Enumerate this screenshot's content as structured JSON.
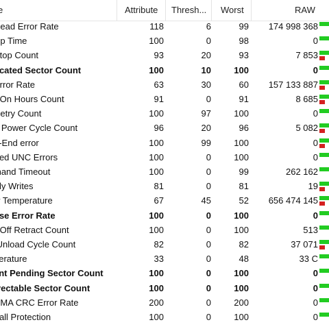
{
  "header": {
    "name": "e",
    "attribute": "Attribute",
    "threshold": "Thresh...",
    "worst": "Worst",
    "raw": "RAW"
  },
  "colors": {
    "ok": "#22cc22",
    "bad": "#d42020"
  },
  "rows": [
    {
      "name": "Read Error Rate",
      "attr": "118",
      "thr": "6",
      "worst": "99",
      "raw": "174 998 368",
      "bold": false,
      "red": false
    },
    {
      "name": "Up Time",
      "attr": "100",
      "thr": "0",
      "worst": "98",
      "raw": "0",
      "bold": false,
      "red": false
    },
    {
      "name": "Stop Count",
      "attr": "93",
      "thr": "20",
      "worst": "93",
      "raw": "7 853",
      "bold": false,
      "red": true
    },
    {
      "name": "ocated Sector Count",
      "attr": "100",
      "thr": "10",
      "worst": "100",
      "raw": "0",
      "bold": true,
      "red": false
    },
    {
      "name": "Error Rate",
      "attr": "63",
      "thr": "30",
      "worst": "60",
      "raw": "157 133 887",
      "bold": false,
      "red": true
    },
    {
      "name": "r-On Hours Count",
      "attr": "91",
      "thr": "0",
      "worst": "91",
      "raw": "8 685",
      "bold": false,
      "red": true
    },
    {
      "name": "Retry Count",
      "attr": "100",
      "thr": "97",
      "worst": "100",
      "raw": "0",
      "bold": false,
      "red": false
    },
    {
      "name": "e Power Cycle Count",
      "attr": "96",
      "thr": "20",
      "worst": "96",
      "raw": "5 082",
      "bold": false,
      "red": true
    },
    {
      "name": "o-End error",
      "attr": "100",
      "thr": "99",
      "worst": "100",
      "raw": "0",
      "bold": false,
      "red": true
    },
    {
      "name": "rted UNC Errors",
      "attr": "100",
      "thr": "0",
      "worst": "100",
      "raw": "0",
      "bold": false,
      "red": false
    },
    {
      "name": "mand Timeout",
      "attr": "100",
      "thr": "0",
      "worst": "99",
      "raw": "262 162",
      "bold": false,
      "red": false
    },
    {
      "name": "Fly Writes",
      "attr": "81",
      "thr": "0",
      "worst": "81",
      "raw": "19",
      "bold": false,
      "red": true
    },
    {
      "name": "w Temperature",
      "attr": "67",
      "thr": "45",
      "worst": "52",
      "raw": "656 474 145",
      "bold": false,
      "red": true
    },
    {
      "name": "nse Error Rate",
      "attr": "100",
      "thr": "0",
      "worst": "100",
      "raw": "0",
      "bold": true,
      "red": false
    },
    {
      "name": "r-Off Retract Count",
      "attr": "100",
      "thr": "0",
      "worst": "100",
      "raw": "513",
      "bold": false,
      "red": false
    },
    {
      "name": "/Unload Cycle Count",
      "attr": "82",
      "thr": "0",
      "worst": "82",
      "raw": "37 071",
      "bold": false,
      "red": true
    },
    {
      "name": "perature",
      "attr": "33",
      "thr": "0",
      "worst": "48",
      "raw": "33 C",
      "bold": false,
      "red": false
    },
    {
      "name": "ent Pending Sector Count",
      "attr": "100",
      "thr": "0",
      "worst": "100",
      "raw": "0",
      "bold": true,
      "red": false
    },
    {
      "name": "rrectable Sector Count",
      "attr": "100",
      "thr": "0",
      "worst": "100",
      "raw": "0",
      "bold": true,
      "red": false
    },
    {
      "name": "DMA CRC Error Rate",
      "attr": "200",
      "thr": "0",
      "worst": "200",
      "raw": "0",
      "bold": false,
      "red": false
    },
    {
      "name": "Fall Protection",
      "attr": "100",
      "thr": "0",
      "worst": "100",
      "raw": "0",
      "bold": false,
      "red": false
    }
  ]
}
